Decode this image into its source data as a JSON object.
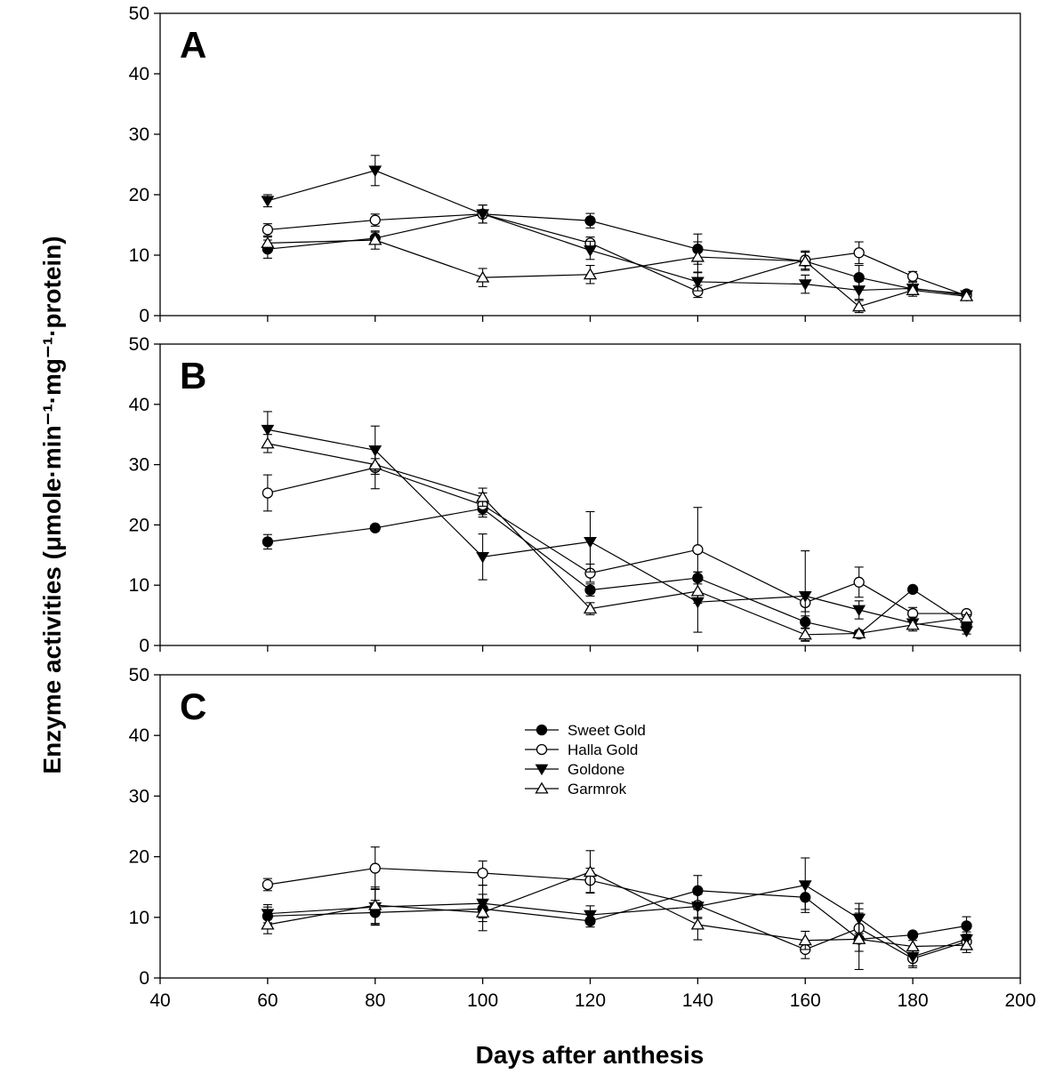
{
  "chart_data": {
    "type": "line",
    "xlabel": "Days after anthesis",
    "ylabel": "Enzyme activities (μmole·min⁻¹·mg⁻¹·protein)",
    "xlim": [
      40,
      200
    ],
    "ylim": [
      0,
      50
    ],
    "x_ticks": [
      40,
      60,
      80,
      100,
      120,
      140,
      160,
      180,
      200
    ],
    "y_ticks": [
      0,
      10,
      20,
      30,
      40,
      50
    ],
    "legend": {
      "placement": "panel C, upper middle",
      "entries": [
        "Sweet Gold",
        "Halla Gold",
        "Goldone",
        "Garmrok"
      ]
    },
    "x": [
      60,
      80,
      100,
      120,
      140,
      160,
      170,
      180,
      190
    ],
    "panels": [
      {
        "label": "A",
        "series": [
          {
            "name": "Sweet Gold",
            "marker": "filled-circle",
            "values": [
              11,
              12.8,
              16.8,
              15.7,
              11,
              9,
              6.3,
              4.4,
              3.6
            ],
            "errors": [
              1.5,
              1,
              1.5,
              1.2,
              2.5,
              1.5,
              2,
              0.8,
              0.5
            ]
          },
          {
            "name": "Halla Gold",
            "marker": "open-circle",
            "values": [
              14.2,
              15.8,
              16.8,
              12,
              4,
              9.2,
              10.4,
              6.5,
              3.3
            ],
            "errors": [
              1,
              1,
              1.5,
              1,
              1,
              1.5,
              1.8,
              0.8,
              0.5
            ]
          },
          {
            "name": "Goldone",
            "marker": "filled-triangle-down",
            "values": [
              19,
              24,
              16.8,
              10.8,
              5.6,
              5.2,
              4.2,
              4.5,
              3.4
            ],
            "errors": [
              1,
              2.5,
              1.5,
              1.5,
              1.5,
              1.5,
              1.5,
              1,
              0.5
            ]
          },
          {
            "name": "Garmrok",
            "marker": "open-triangle-up",
            "values": [
              12,
              12.5,
              6.3,
              6.8,
              9.7,
              9,
              1.5,
              4.2,
              3.2
            ],
            "errors": [
              1,
              1.5,
              1.5,
              1.5,
              2.5,
              1.5,
              1,
              1,
              0.5
            ]
          }
        ]
      },
      {
        "label": "B",
        "series": [
          {
            "name": "Sweet Gold",
            "marker": "filled-circle",
            "values": [
              17.2,
              19.5,
              22.7,
              9.2,
              11.2,
              3.9,
              1.9,
              9.3,
              3.5
            ],
            "errors": [
              1.2,
              0.5,
              1,
              1,
              1,
              1,
              0.5,
              0.5,
              0.5
            ]
          },
          {
            "name": "Halla Gold",
            "marker": "open-circle",
            "values": [
              25.3,
              29.5,
              23.3,
              12,
              15.9,
              7.1,
              10.5,
              5.3,
              5.3
            ],
            "errors": [
              3,
              3.5,
              2,
              1.5,
              7,
              1.5,
              2.5,
              1,
              0.5
            ]
          },
          {
            "name": "Goldone",
            "marker": "filled-triangle-down",
            "values": [
              35.8,
              32.4,
              14.7,
              17.2,
              7.2,
              8.2,
              5.9,
              3.7,
              2.4
            ],
            "errors": [
              3,
              4,
              3.8,
              5,
              5,
              7.5,
              1.5,
              1,
              0.5
            ]
          },
          {
            "name": "Garmrok",
            "marker": "open-triangle-up",
            "values": [
              33.5,
              30,
              24.6,
              6.1,
              9,
              1.8,
              2,
              3.4,
              4.6
            ],
            "errors": [
              1.5,
              1,
              1.5,
              1,
              2,
              1,
              0.5,
              1,
              0.5
            ]
          }
        ]
      },
      {
        "label": "C",
        "series": [
          {
            "name": "Sweet Gold",
            "marker": "filled-circle",
            "values": [
              10.2,
              10.8,
              11.4,
              9.4,
              14.4,
              13.3,
              6.4,
              7.1,
              8.6
            ],
            "errors": [
              1.5,
              2,
              1.5,
              1,
              2.5,
              2,
              2,
              0.5,
              1.5
            ]
          },
          {
            "name": "Halla Gold",
            "marker": "open-circle",
            "values": [
              15.4,
              18.1,
              17.3,
              16.1,
              12,
              4.7,
              8.2,
              3.2,
              6
            ],
            "errors": [
              1,
              3.5,
              2,
              2,
              2,
              1.5,
              2.5,
              1.5,
              1.2
            ]
          },
          {
            "name": "Goldone",
            "marker": "filled-triangle-down",
            "values": [
              10.6,
              11.7,
              12.3,
              10.4,
              11.8,
              15.3,
              9.8,
              3.5,
              6.4
            ],
            "errors": [
              1.5,
              3,
              3,
              1.5,
              2,
              4.5,
              2.5,
              1.5,
              1.2
            ]
          },
          {
            "name": "Garmrok",
            "marker": "open-triangle-up",
            "values": [
              8.8,
              12,
              10.8,
              17.5,
              8.8,
              6.2,
              6.4,
              5.2,
              5.4
            ],
            "errors": [
              1.5,
              3,
              3,
              3.5,
              2.5,
              1.5,
              5,
              1,
              1.2
            ]
          }
        ]
      }
    ]
  }
}
